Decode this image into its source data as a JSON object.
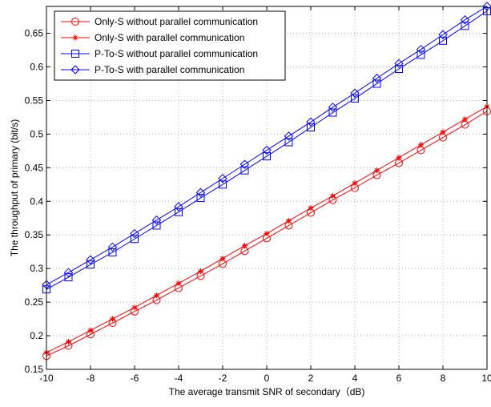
{
  "chart_data": {
    "type": "line",
    "title": "",
    "xlabel": "The average transmit SNR of secondary（dB)",
    "ylabel": "The throughput of primary (bit/s)",
    "xlim": [
      -10,
      10
    ],
    "ylim": [
      0.15,
      0.69
    ],
    "x_ticks": [
      -10,
      -8,
      -6,
      -4,
      -2,
      0,
      2,
      4,
      6,
      8,
      10
    ],
    "y_ticks": [
      0.15,
      0.2,
      0.25,
      0.3,
      0.35,
      0.4,
      0.45,
      0.5,
      0.55,
      0.6,
      0.65
    ],
    "y_tick_labels": [
      "0.15",
      "0.2",
      "0.25",
      "0.3",
      "0.35",
      "0.4",
      "0.45",
      "0.5",
      "0.55",
      "0.6",
      "0.65"
    ],
    "grid": true,
    "legend_position": "top-left",
    "x": [
      -10,
      -9,
      -8,
      -7,
      -6,
      -5,
      -4,
      -3,
      -2,
      -1,
      0,
      1,
      2,
      3,
      4,
      5,
      6,
      7,
      8,
      9,
      10
    ],
    "series": [
      {
        "name": "Only-S without parallel communication",
        "color": "#ff0000",
        "marker": "circle",
        "values": [
          0.17,
          0.185,
          0.202,
          0.219,
          0.236,
          0.253,
          0.271,
          0.289,
          0.307,
          0.326,
          0.345,
          0.364,
          0.383,
          0.402,
          0.42,
          0.439,
          0.457,
          0.476,
          0.495,
          0.514,
          0.534
        ]
      },
      {
        "name": "Only-S with parallel communication",
        "color": "#ff0000",
        "marker": "star",
        "values": [
          0.175,
          0.191,
          0.208,
          0.225,
          0.242,
          0.26,
          0.278,
          0.296,
          0.315,
          0.334,
          0.352,
          0.371,
          0.39,
          0.408,
          0.427,
          0.446,
          0.465,
          0.484,
          0.503,
          0.522,
          0.541
        ]
      },
      {
        "name": "P-To-S without parallel communication",
        "color": "#0000ff",
        "marker": "square",
        "values": [
          0.269,
          0.287,
          0.306,
          0.324,
          0.344,
          0.364,
          0.384,
          0.405,
          0.425,
          0.446,
          0.467,
          0.488,
          0.51,
          0.532,
          0.553,
          0.575,
          0.597,
          0.618,
          0.639,
          0.661,
          0.683
        ]
      },
      {
        "name": "P-To-S with parallel communication",
        "color": "#0000ff",
        "marker": "diamond",
        "values": [
          0.276,
          0.294,
          0.313,
          0.332,
          0.352,
          0.372,
          0.392,
          0.413,
          0.434,
          0.455,
          0.476,
          0.497,
          0.518,
          0.54,
          0.561,
          0.583,
          0.605,
          0.626,
          0.648,
          0.67,
          0.69
        ]
      }
    ]
  }
}
